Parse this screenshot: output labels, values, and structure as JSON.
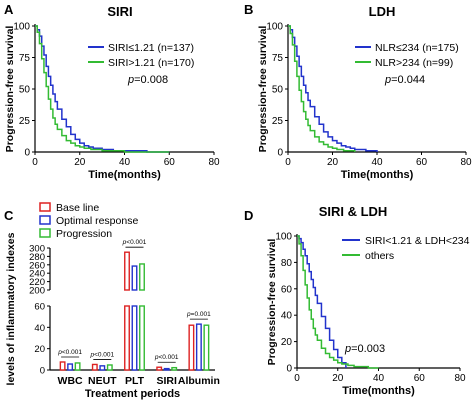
{
  "chart_data": [
    {
      "panel": "A",
      "type": "line",
      "title": "SIRI",
      "xlabel": "Time(months)",
      "ylabel": "Progression-free survival",
      "xticks": [
        "0",
        "20",
        "40",
        "60",
        "80"
      ],
      "yticks": [
        "0",
        "25",
        "50",
        "75",
        "100"
      ],
      "xlim": [
        0,
        80
      ],
      "ylim": [
        0,
        100
      ],
      "pvalue": "p=0.008",
      "legend_position": "top-right",
      "series": [
        {
          "name": "SIRI≤1.21 (n=137)",
          "color": "#2233cc",
          "x": [
            0,
            1,
            2,
            3,
            4,
            5,
            6,
            7,
            8,
            9,
            10,
            12,
            14,
            16,
            18,
            20,
            22,
            24,
            26,
            30,
            35,
            40,
            50,
            60
          ],
          "y": [
            100,
            97,
            92,
            84,
            77,
            68,
            60,
            53,
            46,
            40,
            34,
            26,
            20,
            14,
            10,
            7,
            5,
            4,
            3,
            2,
            1,
            1,
            0,
            0
          ]
        },
        {
          "name": "SIRI>1.21 (n=170)",
          "color": "#33bb33",
          "x": [
            0,
            1,
            2,
            3,
            4,
            5,
            6,
            7,
            8,
            9,
            10,
            12,
            14,
            16,
            18,
            20,
            22,
            25,
            30,
            35,
            40,
            50,
            60
          ],
          "y": [
            100,
            95,
            86,
            74,
            63,
            52,
            42,
            34,
            27,
            22,
            18,
            13,
            9,
            7,
            5,
            4,
            3,
            2,
            1,
            1,
            0,
            0,
            0
          ]
        }
      ]
    },
    {
      "panel": "B",
      "type": "line",
      "title": "LDH",
      "xlabel": "Time(months)",
      "ylabel": "Progression-free survival",
      "xticks": [
        "0",
        "20",
        "40",
        "60",
        "80"
      ],
      "yticks": [
        "0",
        "25",
        "50",
        "75",
        "100"
      ],
      "xlim": [
        0,
        80
      ],
      "ylim": [
        0,
        100
      ],
      "pvalue": "p=0.044",
      "legend_position": "top-right",
      "series": [
        {
          "name": "NLR≤234 (n=175)",
          "color": "#2233cc",
          "x": [
            0,
            1,
            2,
            3,
            4,
            5,
            6,
            7,
            8,
            9,
            10,
            12,
            14,
            16,
            18,
            20,
            22,
            24,
            26,
            28,
            30,
            35,
            40
          ],
          "y": [
            100,
            97,
            91,
            84,
            76,
            68,
            60,
            53,
            47,
            41,
            36,
            28,
            22,
            16,
            12,
            9,
            7,
            5,
            4,
            3,
            2,
            1,
            0
          ]
        },
        {
          "name": "NLR>234 (n=99)",
          "color": "#33bb33",
          "x": [
            0,
            1,
            2,
            3,
            4,
            5,
            6,
            7,
            8,
            9,
            10,
            12,
            14,
            16,
            18,
            20,
            22,
            25,
            28,
            30
          ],
          "y": [
            100,
            94,
            85,
            72,
            60,
            49,
            40,
            32,
            26,
            21,
            17,
            12,
            8,
            6,
            4,
            3,
            2,
            1,
            1,
            0
          ]
        }
      ]
    },
    {
      "panel": "C",
      "type": "bar",
      "xlabel": "Treatment periods",
      "ylabel": "levels of inflammatory indexes",
      "categories": [
        "WBC",
        "NEUT",
        "PLT",
        "SIRI",
        "Albumin"
      ],
      "yticks": [
        "0",
        "20",
        "40",
        "60",
        "200",
        "220",
        "240",
        "260",
        "280",
        "300"
      ],
      "ylim_lower": [
        0,
        60
      ],
      "ylim_upper": [
        200,
        300
      ],
      "legend_position": "top-left",
      "annotations": [
        "p<0.001",
        "p<0.001",
        "p<0.001",
        "p<0.001",
        "p=0.001"
      ],
      "series": [
        {
          "name": "Base line",
          "color": "#dd2222",
          "values": [
            7.5,
            5.2,
            290,
            2.6,
            42
          ]
        },
        {
          "name": "Optimal response",
          "color": "#2233cc",
          "values": [
            5.6,
            3.9,
            257,
            1.3,
            43
          ]
        },
        {
          "name": "Progression",
          "color": "#33bb33",
          "values": [
            6.6,
            4.7,
            262,
            2.2,
            42
          ]
        }
      ]
    },
    {
      "panel": "D",
      "type": "line",
      "title": "SIRI & LDH",
      "xlabel": "Time(months)",
      "ylabel": "Progression-free survival",
      "xticks": [
        "0",
        "20",
        "40",
        "60",
        "80"
      ],
      "yticks": [
        "0",
        "20",
        "40",
        "60",
        "80",
        "100"
      ],
      "xlim": [
        0,
        80
      ],
      "ylim": [
        0,
        100
      ],
      "pvalue": "p=0.003",
      "legend_position": "top-right",
      "series": [
        {
          "name": "SIRI<1.21 & LDH<234",
          "color": "#2233cc",
          "x": [
            0,
            1,
            2,
            3,
            4,
            5,
            6,
            7,
            8,
            9,
            10,
            12,
            14,
            16,
            18,
            20,
            22,
            24
          ],
          "y": [
            100,
            98,
            95,
            90,
            85,
            79,
            73,
            67,
            61,
            55,
            49,
            39,
            30,
            21,
            14,
            8,
            4,
            0
          ]
        },
        {
          "name": "others",
          "color": "#33bb33",
          "x": [
            0,
            1,
            2,
            3,
            4,
            5,
            6,
            7,
            8,
            9,
            10,
            12,
            14,
            16,
            18,
            20,
            22,
            25,
            28,
            30,
            35,
            40
          ],
          "y": [
            100,
            94,
            85,
            74,
            63,
            53,
            44,
            37,
            30,
            25,
            21,
            15,
            11,
            8,
            6,
            4,
            3,
            2,
            1,
            1,
            0,
            0
          ]
        }
      ]
    }
  ]
}
